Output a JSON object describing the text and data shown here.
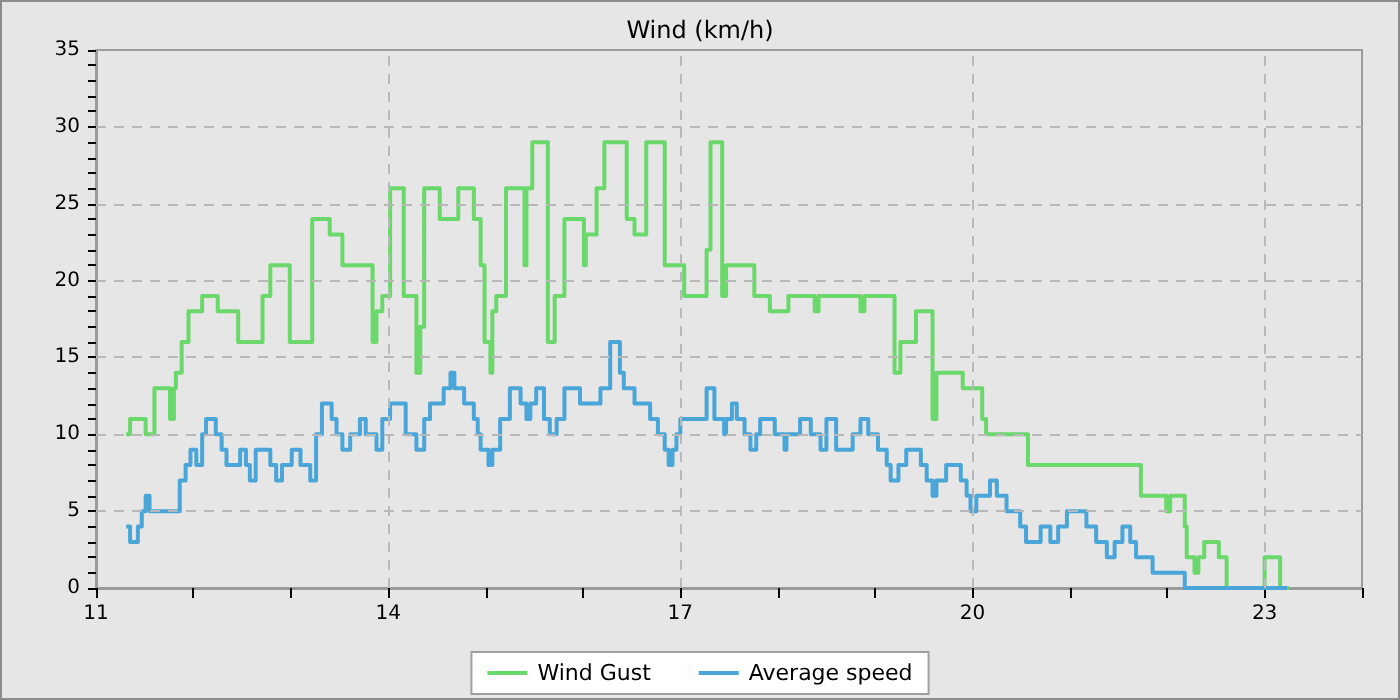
{
  "chart_data": {
    "type": "step",
    "title": "Wind (km/h)",
    "legend": "bottom",
    "grid": true,
    "marker": "none",
    "line_style": "solid",
    "xlim": [
      11,
      24
    ],
    "xticks": [
      11,
      {
        "value": 12,
        "label": null
      },
      {
        "value": 13,
        "label": null
      },
      14,
      {
        "value": 15,
        "label": null
      },
      {
        "value": 16,
        "label": null
      },
      17,
      {
        "value": 18,
        "label": null
      },
      {
        "value": 19,
        "label": null
      },
      20,
      {
        "value": 21,
        "label": null
      },
      {
        "value": 22,
        "label": null
      },
      23,
      {
        "value": 24,
        "label": null
      }
    ],
    "ylim": [
      0,
      35
    ],
    "yticks": [
      0,
      {
        "value": 1,
        "label": null
      },
      {
        "value": 2,
        "label": null
      },
      {
        "value": 3,
        "label": null
      },
      {
        "value": 4,
        "label": null
      },
      5,
      {
        "value": 6,
        "label": null
      },
      {
        "value": 7,
        "label": null
      },
      {
        "value": 8,
        "label": null
      },
      {
        "value": 9,
        "label": null
      },
      10,
      {
        "value": 11,
        "label": null
      },
      {
        "value": 12,
        "label": null
      },
      {
        "value": 13,
        "label": null
      },
      {
        "value": 14,
        "label": null
      },
      15,
      {
        "value": 16,
        "label": null
      },
      {
        "value": 17,
        "label": null
      },
      {
        "value": 18,
        "label": null
      },
      {
        "value": 19,
        "label": null
      },
      20,
      {
        "value": 21,
        "label": null
      },
      {
        "value": 22,
        "label": null
      },
      {
        "value": 23,
        "label": null
      },
      {
        "value": 24,
        "label": null
      },
      25,
      {
        "value": 26,
        "label": null
      },
      {
        "value": 27,
        "label": null
      },
      {
        "value": 28,
        "label": null
      },
      {
        "value": 29,
        "label": null
      },
      30,
      {
        "value": 31,
        "label": null
      },
      {
        "value": 32,
        "label": null
      },
      {
        "value": 33,
        "label": null
      },
      {
        "value": 34,
        "label": null
      },
      35
    ],
    "series": [
      {
        "name": "Wind Gust",
        "color": "#6ad86a",
        "x": [
          11.31,
          11.35,
          11.51,
          11.6,
          11.76,
          11.8,
          11.82,
          11.88,
          11.95,
          12.09,
          12.25,
          12.46,
          12.71,
          12.79,
          12.99,
          13.22,
          13.4,
          13.53,
          13.84,
          13.88,
          13.94,
          14.02,
          14.16,
          14.29,
          14.33,
          14.37,
          14.53,
          14.72,
          14.88,
          14.95,
          14.99,
          15.05,
          15.07,
          15.11,
          15.21,
          15.4,
          15.42,
          15.48,
          15.64,
          15.71,
          15.81,
          16.01,
          16.03,
          16.14,
          16.22,
          16.45,
          16.53,
          16.65,
          16.84,
          17.04,
          17.27,
          17.31,
          17.43,
          17.47,
          17.76,
          17.92,
          18.11,
          18.38,
          18.42,
          18.85,
          18.89,
          19.2,
          19.26,
          19.42,
          19.59,
          19.63,
          19.9,
          20.1,
          20.14,
          20.57,
          21.73,
          21.99,
          22.03,
          22.18,
          22.2,
          22.28,
          22.32,
          22.38,
          22.53,
          22.61,
          23.0,
          23.16,
          23.25
        ],
        "values": [
          10,
          11,
          10,
          13,
          11,
          13,
          14,
          16,
          18,
          19,
          18,
          16,
          19,
          21,
          16,
          24,
          23,
          21,
          16,
          18,
          19,
          26,
          19,
          14,
          17,
          26,
          24,
          26,
          24,
          21,
          16,
          14,
          18,
          19,
          26,
          21,
          26,
          29,
          16,
          19,
          24,
          21,
          23,
          26,
          29,
          24,
          23,
          29,
          21,
          19,
          22,
          29,
          19,
          21,
          19,
          18,
          19,
          18,
          19,
          18,
          19,
          14,
          16,
          18,
          11,
          14,
          13,
          11,
          10,
          8,
          6,
          5,
          6,
          4,
          2,
          1,
          2,
          3,
          2,
          0,
          2,
          0,
          0
        ]
      },
      {
        "name": "Average speed",
        "color": "#4aa6d8",
        "x": [
          11.31,
          11.35,
          11.43,
          11.47,
          11.51,
          11.55,
          11.86,
          11.92,
          11.97,
          12.03,
          12.09,
          12.13,
          12.23,
          12.29,
          12.34,
          12.48,
          12.54,
          12.58,
          12.64,
          12.79,
          12.85,
          12.91,
          13.01,
          13.1,
          13.2,
          13.26,
          13.32,
          13.42,
          13.47,
          13.53,
          13.61,
          13.71,
          13.77,
          13.88,
          13.94,
          14.02,
          14.18,
          14.29,
          14.37,
          14.43,
          14.57,
          14.64,
          14.68,
          14.78,
          14.88,
          14.92,
          14.95,
          15.03,
          15.07,
          15.15,
          15.25,
          15.36,
          15.42,
          15.46,
          15.52,
          15.6,
          15.66,
          15.73,
          15.81,
          15.97,
          16.18,
          16.28,
          16.38,
          16.42,
          16.53,
          16.69,
          16.77,
          16.84,
          16.88,
          16.92,
          16.96,
          17.0,
          17.27,
          17.35,
          17.45,
          17.47,
          17.53,
          17.58,
          17.66,
          17.72,
          17.78,
          17.82,
          17.97,
          18.07,
          18.09,
          18.23,
          18.34,
          18.44,
          18.5,
          18.6,
          18.77,
          18.85,
          18.93,
          19.03,
          19.12,
          19.16,
          19.24,
          19.32,
          19.47,
          19.53,
          19.59,
          19.63,
          19.73,
          19.88,
          19.94,
          19.98,
          20.04,
          20.18,
          20.25,
          20.35,
          20.49,
          20.55,
          20.7,
          20.8,
          20.88,
          20.97,
          21.17,
          21.27,
          21.38,
          21.46,
          21.54,
          21.62,
          21.68,
          21.85,
          22.18,
          23.23
        ],
        "values": [
          4,
          3,
          4,
          5,
          6,
          5,
          7,
          8,
          9,
          8,
          10,
          11,
          10,
          9,
          8,
          9,
          8,
          7,
          9,
          8,
          7,
          8,
          9,
          8,
          7,
          10,
          12,
          11,
          10,
          9,
          10,
          11,
          10,
          9,
          11,
          12,
          10,
          9,
          11,
          12,
          13,
          14,
          13,
          12,
          11,
          10,
          9,
          8,
          9,
          11,
          13,
          12,
          11,
          12,
          13,
          11,
          10,
          11,
          13,
          12,
          13,
          16,
          14,
          13,
          12,
          11,
          10,
          9,
          8,
          9,
          10,
          11,
          13,
          11,
          10,
          11,
          12,
          11,
          10,
          9,
          10,
          11,
          10,
          9,
          10,
          11,
          10,
          9,
          11,
          9,
          10,
          11,
          10,
          9,
          8,
          7,
          8,
          9,
          8,
          7,
          6,
          7,
          8,
          7,
          6,
          5,
          6,
          7,
          6,
          5,
          4,
          3,
          4,
          3,
          4,
          5,
          4,
          3,
          2,
          3,
          4,
          3,
          2,
          1,
          0,
          0
        ]
      }
    ]
  }
}
